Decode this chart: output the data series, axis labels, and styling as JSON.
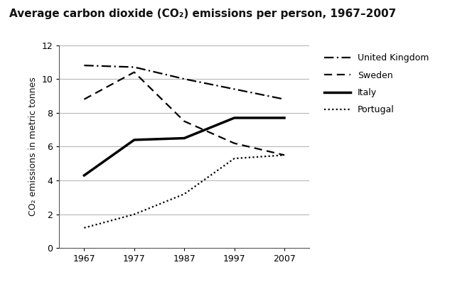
{
  "title": "Average carbon dioxide (CO₂) emissions per person, 1967–2007",
  "ylabel": "CO₂ emissions in metric tonnes",
  "years": [
    1967,
    1977,
    1987,
    1997,
    2007
  ],
  "united_kingdom": [
    10.8,
    10.7,
    10.0,
    9.4,
    8.8
  ],
  "sweden": [
    8.8,
    10.4,
    7.5,
    6.2,
    5.5
  ],
  "italy": [
    4.3,
    6.4,
    6.5,
    7.7,
    7.7
  ],
  "portugal": [
    1.2,
    2.0,
    3.2,
    5.3,
    5.5
  ],
  "ylim": [
    0,
    12
  ],
  "yticks": [
    0,
    2,
    4,
    6,
    8,
    10,
    12
  ],
  "xticks": [
    1967,
    1977,
    1987,
    1997,
    2007
  ],
  "background_color": "#ffffff",
  "grid_color": "#b0b0b0",
  "line_color": "#000000",
  "title_fontsize": 11,
  "label_fontsize": 9,
  "tick_fontsize": 9,
  "legend_labels": [
    "United Kingdom",
    "Sweden",
    "Italy",
    "Portugal"
  ]
}
